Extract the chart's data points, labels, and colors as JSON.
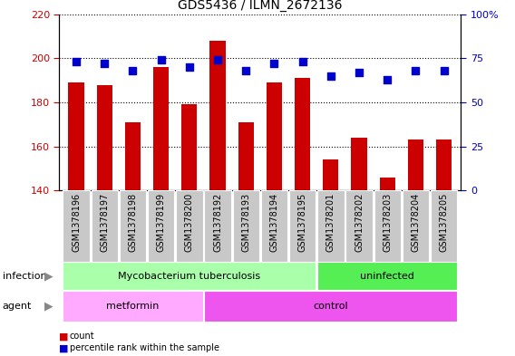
{
  "title": "GDS5436 / ILMN_2672136",
  "samples": [
    "GSM1378196",
    "GSM1378197",
    "GSM1378198",
    "GSM1378199",
    "GSM1378200",
    "GSM1378192",
    "GSM1378193",
    "GSM1378194",
    "GSM1378195",
    "GSM1378201",
    "GSM1378202",
    "GSM1378203",
    "GSM1378204",
    "GSM1378205"
  ],
  "counts": [
    189,
    188,
    171,
    196,
    179,
    208,
    171,
    189,
    191,
    154,
    164,
    146,
    163,
    163
  ],
  "percentiles": [
    73,
    72,
    68,
    74,
    70,
    74,
    68,
    72,
    73,
    65,
    67,
    63,
    68,
    68
  ],
  "ylim_left": [
    140,
    220
  ],
  "ylim_right": [
    0,
    100
  ],
  "yticks_left": [
    140,
    160,
    180,
    200,
    220
  ],
  "yticks_right": [
    0,
    25,
    50,
    75,
    100
  ],
  "yticklabels_right": [
    "0",
    "25",
    "50",
    "75",
    "100%"
  ],
  "bar_color": "#cc0000",
  "dot_color": "#0000cc",
  "tick_bg": "#c8c8c8",
  "infection_groups": [
    {
      "label": "Mycobacterium tuberculosis",
      "start": 0,
      "end": 9,
      "color": "#aaffaa"
    },
    {
      "label": "uninfected",
      "start": 9,
      "end": 14,
      "color": "#55ee55"
    }
  ],
  "agent_groups": [
    {
      "label": "metformin",
      "start": 0,
      "end": 5,
      "color": "#ffaaff"
    },
    {
      "label": "control",
      "start": 5,
      "end": 14,
      "color": "#ee55ee"
    }
  ],
  "infection_label": "infection",
  "agent_label": "agent",
  "legend_count_label": "count",
  "legend_pct_label": "percentile rank within the sample",
  "title_fontsize": 10,
  "tick_fontsize": 7,
  "bar_width": 0.55,
  "dot_size": 30
}
